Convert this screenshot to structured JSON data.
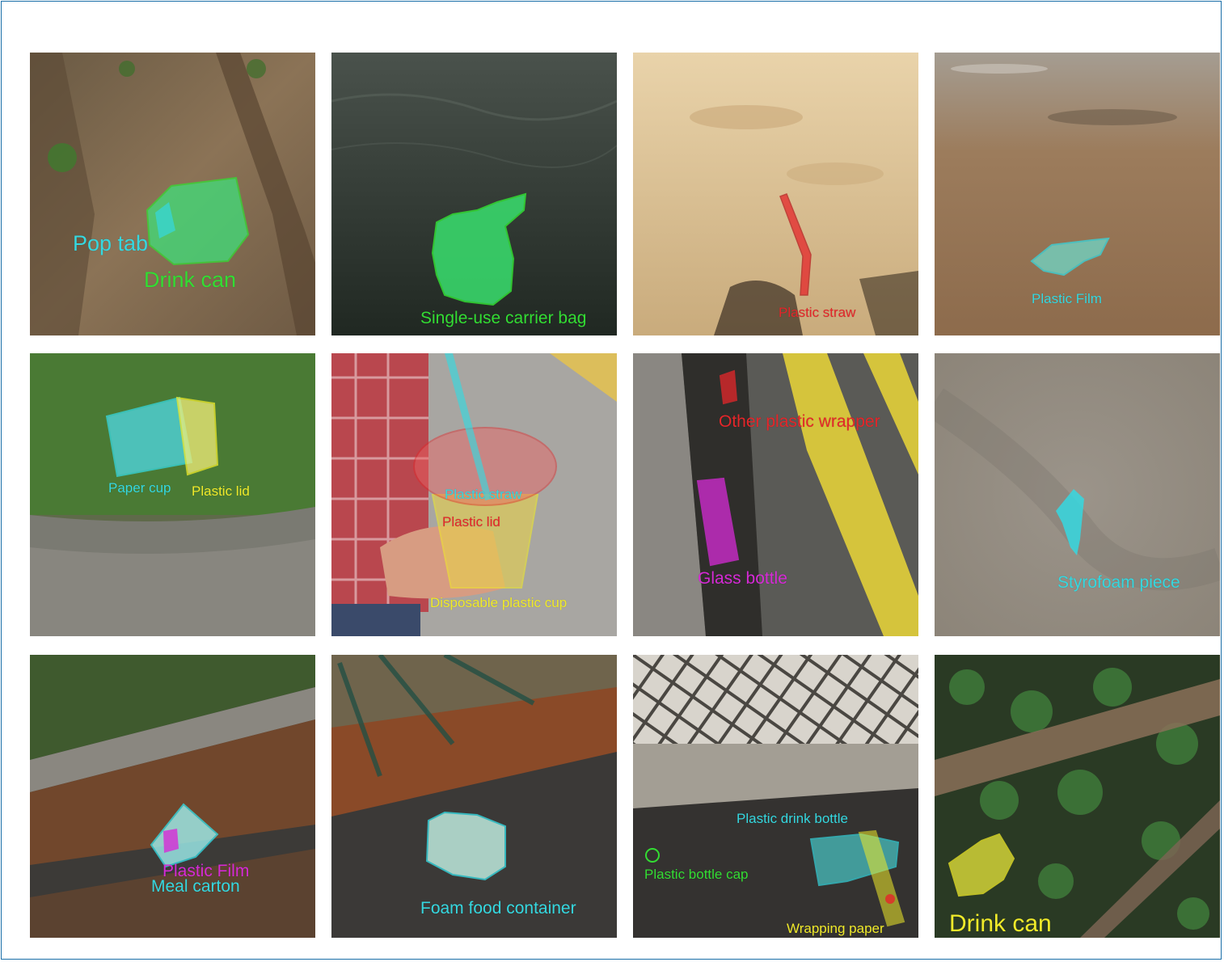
{
  "colors": {
    "cyan": "#35d8e0",
    "green": "#33dd33",
    "red": "#e5262a",
    "yellow": "#f0ea2a",
    "magenta": "#d62ad6",
    "light_cyan": "#9ef0ef"
  },
  "panels": [
    {
      "labels": [
        "Pop tab",
        "Drink can"
      ]
    },
    {
      "labels": [
        "Single-use carrier bag"
      ]
    },
    {
      "labels": [
        "Plastic straw"
      ]
    },
    {
      "labels": [
        "Plastic Film"
      ]
    },
    {
      "labels": [
        "Paper cup",
        "Plastic lid"
      ]
    },
    {
      "labels": [
        "Plastic straw",
        "Plastic lid",
        "Disposable plastic cup"
      ]
    },
    {
      "labels": [
        "Other plastic wrapper",
        "Glass bottle"
      ]
    },
    {
      "labels": [
        "Styrofoam piece"
      ]
    },
    {
      "labels": [
        "Plastic Film",
        "Meal carton"
      ]
    },
    {
      "labels": [
        "Foam food container"
      ]
    },
    {
      "labels": [
        "Plastic drink bottle",
        "Plastic bottle cap",
        "Wrapping paper"
      ]
    },
    {
      "labels": [
        "Drink can"
      ]
    }
  ]
}
